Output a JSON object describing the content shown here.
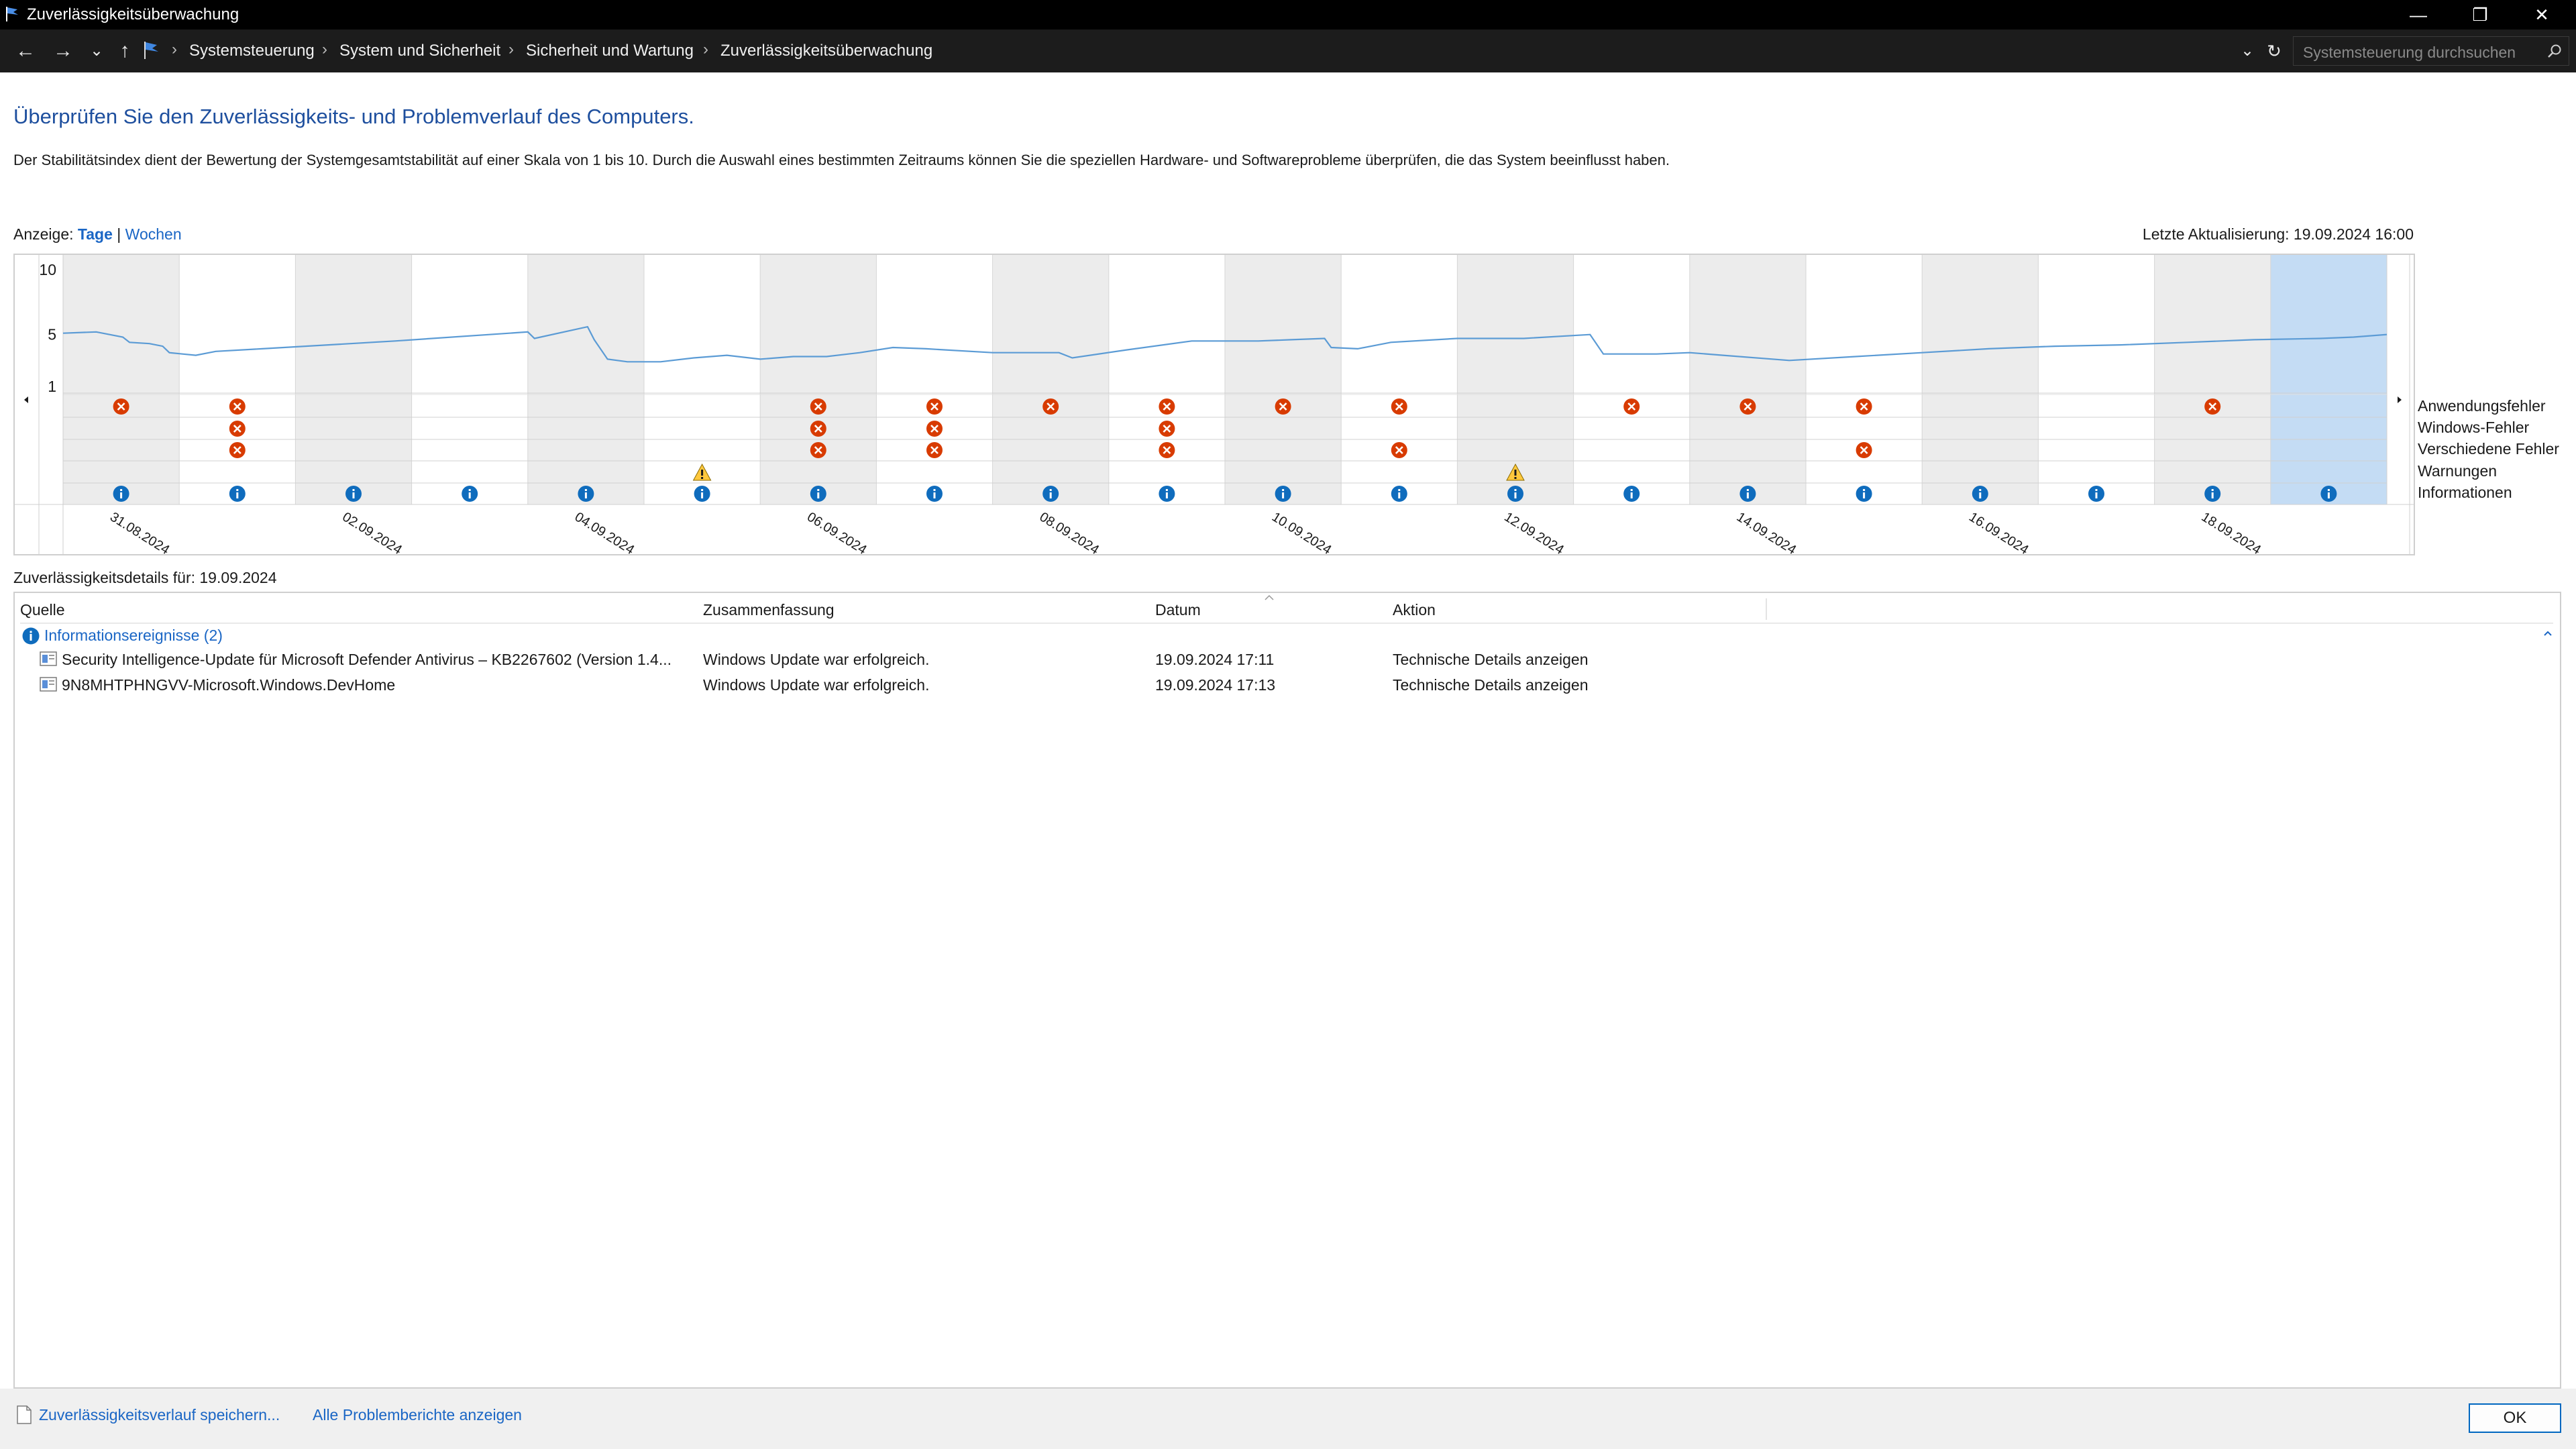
{
  "window": {
    "title": "Zuverlässigkeitsüberwachung",
    "minimize_glyph": "—",
    "maximize_glyph": "❐",
    "close_glyph": "✕"
  },
  "addressbar": {
    "back_glyph": "←",
    "forward_glyph": "→",
    "recent_glyph": "⌄",
    "up_glyph": "↑",
    "breadcrumbs": [
      "Systemsteuerung",
      "System und Sicherheit",
      "Sicherheit und Wartung",
      "Zuverlässigkeitsüberwachung"
    ],
    "separator": "›",
    "dropdown_glyph": "⌄",
    "refresh_glyph": "↻",
    "search_placeholder": "Systemsteuerung durchsuchen"
  },
  "page": {
    "heading": "Überprüfen Sie den Zuverlässigkeits- und Problemverlauf des Computers.",
    "description": "Der Stabilitätsindex dient der Bewertung der Systemgesamtstabilität auf einer Skala von 1 bis 10. Durch die Auswahl eines bestimmten Zeitraums können Sie die speziellen Hardware- und Softwareprobleme überprüfen, die das System beeinflusst haben.",
    "view_label": "Anzeige:",
    "view_days": "Tage",
    "view_sep": "|",
    "view_weeks": "Wochen",
    "last_update": "Letzte Aktualisierung: 19.09.2024 16:00"
  },
  "chart_data": {
    "type": "line",
    "title": "",
    "y_ticks": [
      "10",
      "5",
      "1"
    ],
    "ylim": [
      1,
      10
    ],
    "date_labels": [
      "31.08.2024",
      "02.09.2024",
      "04.09.2024",
      "06.09.2024",
      "08.09.2024",
      "10.09.2024",
      "12.09.2024",
      "14.09.2024",
      "16.09.2024",
      "18.09.2024"
    ],
    "columns": 20,
    "selected_column": 19,
    "stability_index": [
      [
        0.0,
        5.1
      ],
      [
        0.5,
        5.2
      ],
      [
        0.9,
        4.8
      ],
      [
        1.0,
        4.4
      ],
      [
        1.3,
        4.3
      ],
      [
        1.5,
        4.1
      ],
      [
        1.6,
        3.6
      ],
      [
        1.8,
        3.5
      ],
      [
        2.0,
        3.4
      ],
      [
        2.3,
        3.7
      ],
      [
        3.0,
        3.9
      ],
      [
        5.0,
        4.5
      ],
      [
        7.0,
        5.2
      ],
      [
        7.1,
        4.7
      ],
      [
        7.9,
        5.6
      ],
      [
        8.0,
        4.6
      ],
      [
        8.2,
        3.1
      ],
      [
        8.5,
        2.9
      ],
      [
        9.0,
        2.9
      ],
      [
        9.5,
        3.2
      ],
      [
        10.0,
        3.4
      ],
      [
        10.5,
        3.1
      ],
      [
        11.0,
        3.3
      ],
      [
        11.5,
        3.3
      ],
      [
        12.0,
        3.6
      ],
      [
        12.5,
        4.0
      ],
      [
        13.0,
        3.9
      ],
      [
        14.0,
        3.6
      ],
      [
        15.0,
        3.6
      ],
      [
        15.2,
        3.2
      ],
      [
        16.0,
        3.8
      ],
      [
        17.0,
        4.5
      ],
      [
        18.0,
        4.5
      ],
      [
        18.5,
        4.6
      ],
      [
        19.0,
        4.7
      ],
      [
        19.1,
        4.0
      ],
      [
        19.5,
        3.9
      ],
      [
        20.0,
        4.4
      ],
      [
        21.0,
        4.7
      ],
      [
        22.0,
        4.7
      ],
      [
        23.0,
        5.0
      ],
      [
        23.2,
        3.5
      ],
      [
        24.0,
        3.5
      ],
      [
        24.5,
        3.6
      ],
      [
        25.0,
        3.4
      ],
      [
        26.0,
        3.0
      ],
      [
        27.0,
        3.3
      ],
      [
        28.0,
        3.6
      ],
      [
        29.0,
        3.9
      ],
      [
        30.0,
        4.1
      ],
      [
        31.0,
        4.2
      ],
      [
        32.0,
        4.4
      ],
      [
        33.0,
        4.6
      ],
      [
        34.0,
        4.7
      ],
      [
        34.5,
        4.8
      ],
      [
        35.0,
        5.0
      ]
    ],
    "row_labels": [
      "Anwendungsfehler",
      "Windows-Fehler",
      "Verschiedene Fehler",
      "Warnungen",
      "Informationen"
    ],
    "events": {
      "app_errors": [
        0,
        1,
        6,
        7,
        8,
        9,
        10,
        11,
        13,
        14,
        15,
        18
      ],
      "windows_errors": [
        1,
        6,
        7,
        9
      ],
      "misc_errors": [
        1,
        6,
        7,
        9,
        11,
        15
      ],
      "warnings": [
        5,
        12
      ],
      "info": [
        0,
        1,
        2,
        3,
        4,
        5,
        6,
        7,
        8,
        9,
        10,
        11,
        12,
        13,
        14,
        15,
        16,
        17,
        18,
        19
      ]
    },
    "colors": {
      "line": "#5b9bd5",
      "error": "#d83b01",
      "warning": "#ffc83d",
      "info": "#0f6cbd",
      "shaded_column": "#ececec",
      "selected_column": "#c4dcf4"
    }
  },
  "details": {
    "title": "Zuverlässigkeitsdetails für: 19.09.2024",
    "columns": [
      "Quelle",
      "Zusammenfassung",
      "Datum",
      "Aktion"
    ],
    "group_label": "Informationsereignisse (2)",
    "rows": [
      {
        "source": "Security Intelligence-Update für Microsoft Defender Antivirus – KB2267602 (Version 1.4...",
        "summary": "Windows Update war erfolgreich.",
        "date": "19.09.2024 17:11",
        "action": "Technische Details anzeigen"
      },
      {
        "source": "9N8MHTPHNGVV-Microsoft.Windows.DevHome",
        "summary": "Windows Update war erfolgreich.",
        "date": "19.09.2024 17:13",
        "action": "Technische Details anzeigen"
      }
    ]
  },
  "footer": {
    "save_link": "Zuverlässigkeitsverlauf speichern...",
    "all_reports_link": "Alle Problemberichte anzeigen",
    "ok_label": "OK"
  },
  "icons": {
    "app": "reliability-flag-icon",
    "info": "info-icon",
    "error": "error-icon",
    "warning": "warning-icon"
  }
}
